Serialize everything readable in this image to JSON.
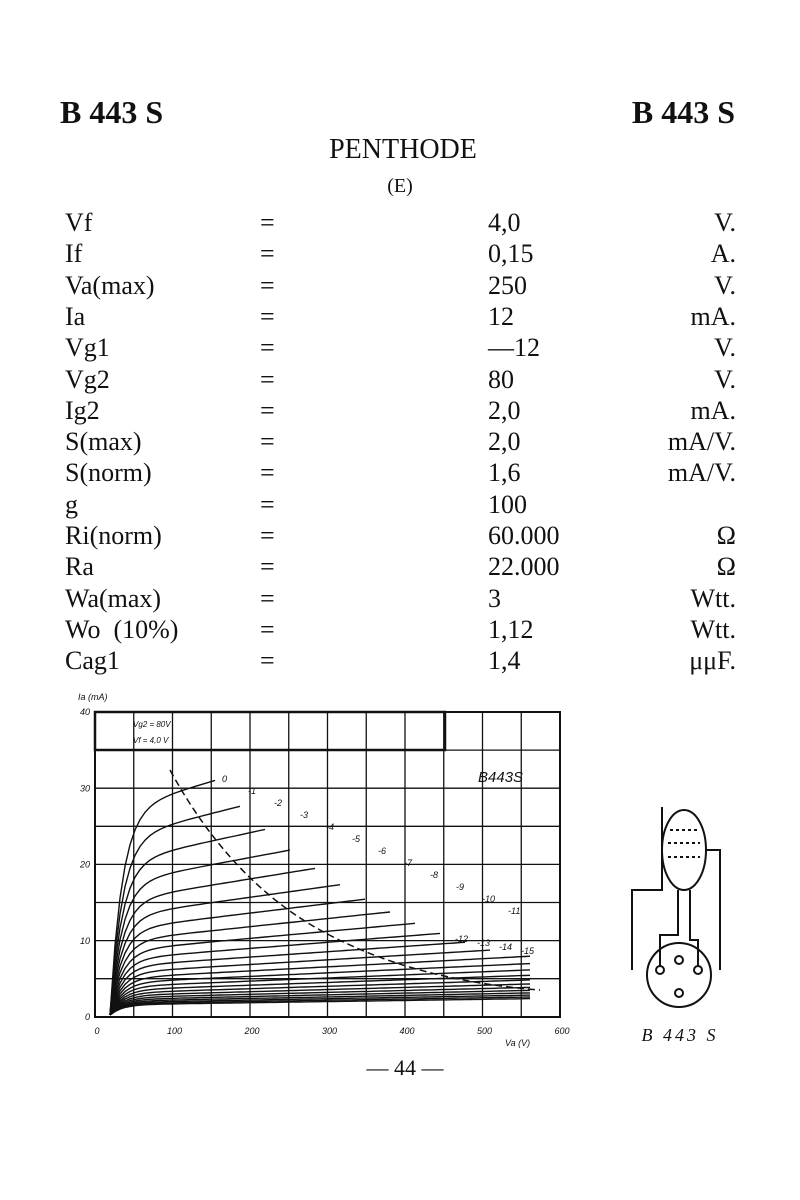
{
  "header": {
    "left_title": "B 443 S",
    "right_title": "B 443 S",
    "tube_type": "PENTHODE",
    "tube_class": "(E)"
  },
  "table": {
    "rows": [
      [
        "Vf",
        "=",
        "4,0",
        "V."
      ],
      [
        "If",
        "=",
        "0,15",
        "A."
      ],
      [
        "Va(max)",
        "=",
        "250",
        "V."
      ],
      [
        "Ia",
        "=",
        "12",
        "mA."
      ],
      [
        "Vg1",
        "=",
        "—12",
        "V."
      ],
      [
        "Vg2",
        "=",
        "80",
        "V."
      ],
      [
        "Ig2",
        "=",
        "2,0",
        "mA."
      ],
      [
        "S(max)",
        "=",
        "2,0",
        "mA/V."
      ],
      [
        "S(norm)",
        "=",
        "1,6",
        "mA/V."
      ],
      [
        "g",
        "=",
        "100",
        ""
      ],
      [
        "Ri(norm)",
        "=",
        "60.000",
        "Ω"
      ],
      [
        "Ra",
        "=",
        "22.000",
        "Ω"
      ],
      [
        "Wa(max)",
        "=",
        "3",
        "Wtt."
      ],
      [
        "Wo  (10%)",
        "=",
        "1,12",
        "Wtt."
      ],
      [
        "Cag1",
        "=",
        "1,4",
        "μμF."
      ]
    ]
  },
  "figure": {
    "y_axis_label": "Ia (mA)",
    "x_axis_label": "Va (V)",
    "yticks": [
      "0",
      "10",
      "20",
      "30",
      "40"
    ],
    "xticks": [
      "0",
      "100",
      "200",
      "300",
      "400",
      "500",
      "600"
    ],
    "chart_label": "B443S",
    "annotations": [
      "Vg2 = 80V",
      "Vf = 4,0 V"
    ],
    "curve_labels": [
      "0",
      "-1",
      "-2",
      "-3",
      "-4",
      "-5",
      "-6",
      "-7",
      "-8",
      "-9",
      "-10",
      "-11",
      "-12",
      "-13",
      "-14",
      "-15"
    ]
  },
  "diagram": {
    "label": "B 443 S"
  },
  "footer": {
    "page": "— 44 —"
  }
}
